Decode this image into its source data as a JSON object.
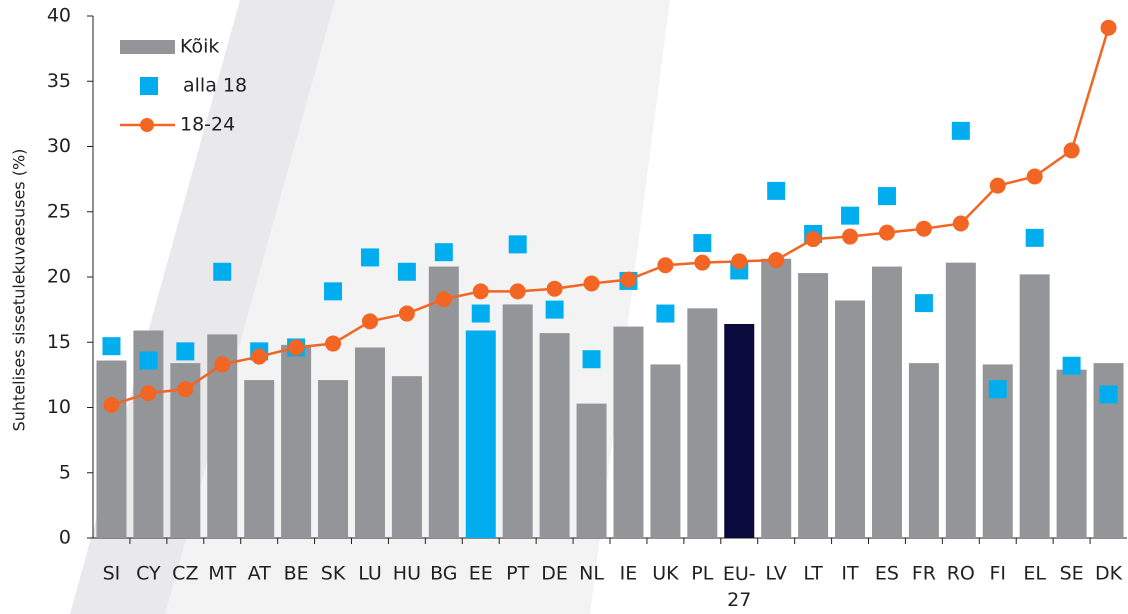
{
  "chart_data": {
    "type": "bar",
    "y_label": "Suhtelises sissetulekuvaesuses (%)",
    "categories": [
      "SI",
      "CY",
      "CZ",
      "MT",
      "AT",
      "BE",
      "SK",
      "LU",
      "HU",
      "BG",
      "EE",
      "PT",
      "DE",
      "NL",
      "IE",
      "UK",
      "PL",
      "EU-27",
      "LV",
      "LT",
      "IT",
      "ES",
      "FR",
      "RO",
      "FI",
      "EL",
      "SE",
      "DK"
    ],
    "series": [
      {
        "name": "Kõik",
        "type": "bar",
        "color": "#939598",
        "colors": [
          "#939598",
          "#939598",
          "#939598",
          "#939598",
          "#939598",
          "#939598",
          "#939598",
          "#939598",
          "#939598",
          "#939598",
          "#00aeef",
          "#939598",
          "#939598",
          "#939598",
          "#939598",
          "#939598",
          "#939598",
          "#0a0a3c",
          "#939598",
          "#939598",
          "#939598",
          "#939598",
          "#939598",
          "#939598",
          "#939598",
          "#939598",
          "#939598",
          "#939598"
        ],
        "values": [
          13.6,
          15.9,
          13.4,
          15.6,
          12.1,
          14.8,
          12.1,
          14.6,
          12.4,
          20.8,
          15.9,
          17.9,
          15.7,
          10.3,
          16.2,
          13.3,
          17.6,
          16.4,
          21.4,
          20.3,
          18.2,
          20.8,
          13.4,
          21.1,
          13.3,
          20.2,
          12.9,
          13.4
        ]
      },
      {
        "name": "alla 18",
        "type": "scatter",
        "color": "#00aeef",
        "values": [
          14.7,
          13.6,
          14.3,
          20.4,
          14.3,
          14.6,
          18.9,
          21.5,
          20.4,
          21.9,
          17.2,
          22.5,
          17.5,
          13.7,
          19.7,
          17.2,
          22.6,
          20.5,
          26.6,
          23.3,
          24.7,
          26.2,
          18.0,
          31.2,
          11.4,
          23.0,
          13.2,
          11.0
        ]
      },
      {
        "name": "18-24",
        "type": "line",
        "color": "#f26522",
        "values": [
          10.2,
          11.1,
          11.4,
          13.3,
          13.9,
          14.6,
          14.9,
          16.6,
          17.2,
          18.3,
          18.9,
          18.9,
          19.1,
          19.5,
          19.8,
          20.9,
          21.1,
          21.2,
          21.3,
          22.9,
          23.1,
          23.4,
          23.7,
          24.1,
          27.0,
          27.7,
          29.7,
          39.1
        ]
      }
    ],
    "ylim": [
      0,
      40
    ],
    "yticks": [
      0,
      5,
      10,
      15,
      20,
      25,
      30,
      35,
      40
    ],
    "grid": false,
    "legend": "top-left"
  }
}
